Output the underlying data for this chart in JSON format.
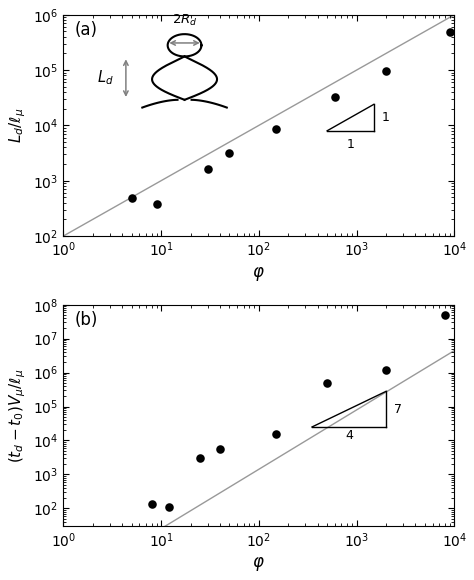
{
  "panel_a": {
    "label": "(a)",
    "xlabel": "$\\varphi$",
    "ylabel": "$L_d / \\ell_\\mu$",
    "xlim": [
      1,
      10000
    ],
    "ylim": [
      100,
      1000000
    ],
    "xdata": [
      5,
      9,
      30,
      50,
      150,
      600,
      2000,
      9000
    ],
    "ydata": [
      480,
      380,
      1600,
      3200,
      8500,
      33000,
      95000,
      480000
    ],
    "line_slope": 1.0,
    "line_intercept_log": 2.0,
    "slope_num": "1",
    "slope_den": "1",
    "triangle_x0": 500,
    "triangle_x1": 1500,
    "triangle_y0": 8000,
    "triangle_y1": 24000
  },
  "panel_b": {
    "label": "(b)",
    "xlabel": "$\\varphi$",
    "ylabel": "$(t_d - t_0) V_\\mu / \\ell_\\mu$",
    "xlim": [
      1,
      10000
    ],
    "ylim": [
      30,
      100000000
    ],
    "xdata": [
      8,
      12,
      25,
      40,
      150,
      500,
      2000,
      8000
    ],
    "ydata": [
      130,
      110,
      3000,
      5500,
      15000,
      480000,
      1200000,
      50000000
    ],
    "line_slope": 1.75,
    "line_intercept_log": -0.35,
    "slope_num": "7",
    "slope_den": "4",
    "triangle_x0": 350,
    "triangle_x1": 2000,
    "triangle_y0": 25000,
    "triangle_y1": 280000
  },
  "dot_color": "#000000",
  "dot_size": 38,
  "line_color": "#999999",
  "line_width": 1.0,
  "bg_color": "#ffffff"
}
